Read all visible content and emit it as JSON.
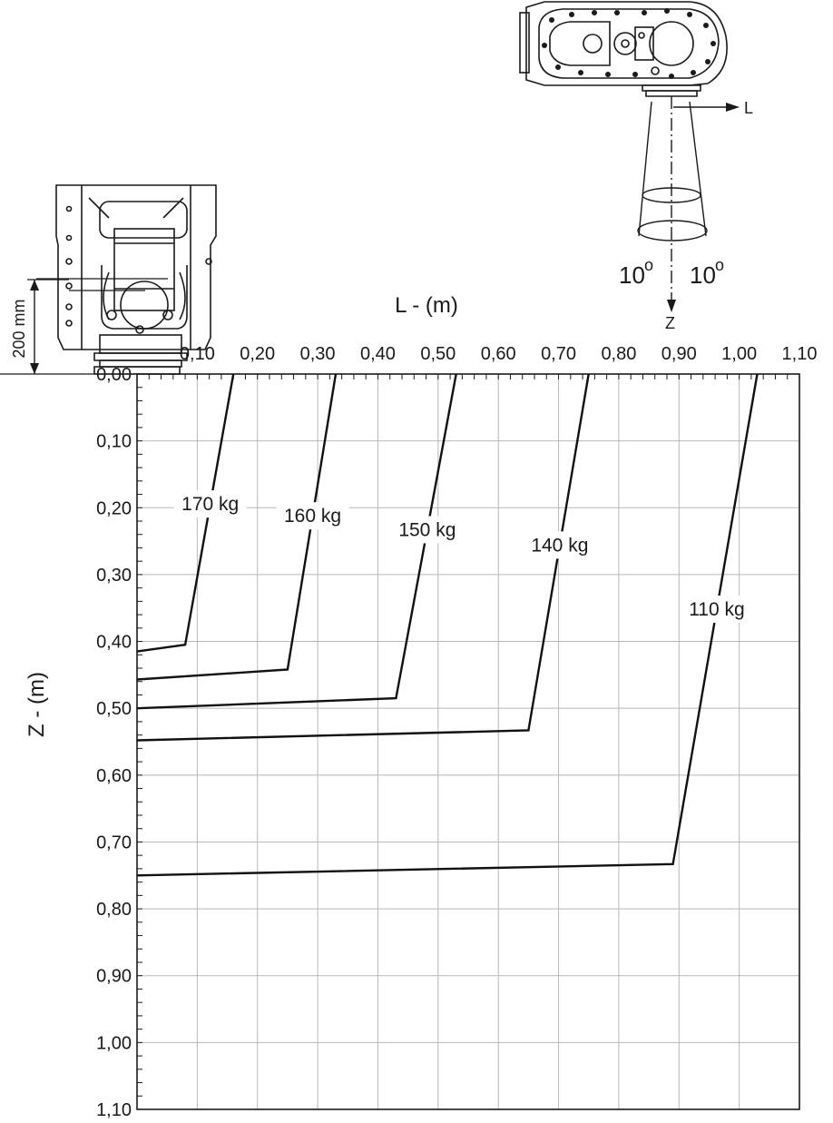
{
  "chart_data": {
    "type": "line",
    "xlabel": "L - (m)",
    "ylabel": "Z - (m)",
    "xlim": [
      0.0,
      1.1
    ],
    "ylim": [
      0.0,
      1.1
    ],
    "y_inverted": true,
    "x_axis_position": "top",
    "grid": true,
    "x_tick_labels": [
      "0,10",
      "0,20",
      "0,30",
      "0,40",
      "0,50",
      "0,60",
      "0,70",
      "0,80",
      "0,90",
      "1,00",
      "1,10"
    ],
    "x_ticks": [
      0.1,
      0.2,
      0.3,
      0.4,
      0.5,
      0.6,
      0.7,
      0.8,
      0.9,
      1.0,
      1.1
    ],
    "y_tick_labels": [
      "0,00",
      "0,10",
      "0,20",
      "0,30",
      "0,40",
      "0,50",
      "0,60",
      "0,70",
      "0,80",
      "0,90",
      "1,00",
      "1,10"
    ],
    "y_ticks": [
      0.0,
      0.1,
      0.2,
      0.3,
      0.4,
      0.5,
      0.6,
      0.7,
      0.8,
      0.9,
      1.0,
      1.1
    ],
    "series": [
      {
        "name": "170 kg",
        "points": [
          [
            0.0,
            0.415
          ],
          [
            0.08,
            0.405
          ],
          [
            0.16,
            0.0
          ]
        ]
      },
      {
        "name": "160 kg",
        "points": [
          [
            0.0,
            0.457
          ],
          [
            0.25,
            0.442
          ],
          [
            0.33,
            0.0
          ]
        ]
      },
      {
        "name": "150 kg",
        "points": [
          [
            0.0,
            0.5
          ],
          [
            0.43,
            0.485
          ],
          [
            0.53,
            0.0
          ]
        ]
      },
      {
        "name": "140 kg",
        "points": [
          [
            0.0,
            0.548
          ],
          [
            0.65,
            0.533
          ],
          [
            0.75,
            0.0
          ]
        ]
      },
      {
        "name": "110 kg",
        "points": [
          [
            0.0,
            0.75
          ],
          [
            0.89,
            0.733
          ],
          [
            1.03,
            0.0
          ]
        ]
      }
    ]
  },
  "annotations": {
    "offset_dimension": "200 mm",
    "cone_angle_left": "10",
    "cone_angle_right": "10",
    "degree_symbol": "o",
    "direction_l": "L",
    "direction_z": "Z"
  }
}
